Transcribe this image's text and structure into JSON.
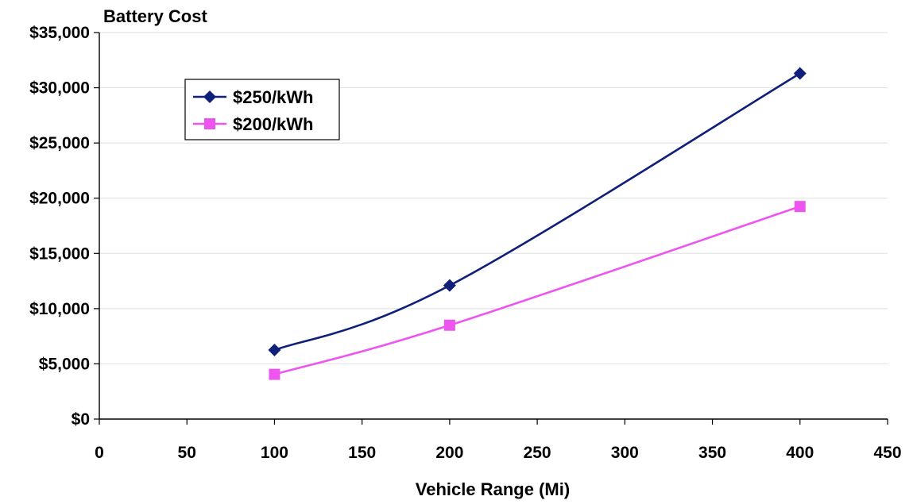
{
  "chart_data": {
    "type": "line",
    "title": "",
    "ylabel": "Battery Cost",
    "xlabel": "Vehicle Range (Mi)",
    "xlim": [
      0,
      450
    ],
    "ylim": [
      0,
      35000
    ],
    "x_ticks": [
      0,
      50,
      100,
      150,
      200,
      250,
      300,
      350,
      400,
      450
    ],
    "x_tick_labels": [
      "0",
      "50",
      "100",
      "150",
      "200",
      "250",
      "300",
      "350",
      "400",
      "450"
    ],
    "y_ticks": [
      0,
      5000,
      10000,
      15000,
      20000,
      25000,
      30000,
      35000
    ],
    "y_tick_labels": [
      "$0",
      "$5,000",
      "$10,000",
      "$15,000",
      "$20,000",
      "$25,000",
      "$30,000",
      "$35,000"
    ],
    "grid": "horizontal",
    "legend_position": "top-left",
    "series": [
      {
        "name": "$250/kWh",
        "color": "#0f1f7a",
        "marker": "diamond",
        "x": [
          100,
          200,
          400
        ],
        "values": [
          6250,
          12100,
          31300
        ]
      },
      {
        "name": "$200/kWh",
        "color": "#ee55ee",
        "marker": "square",
        "x": [
          100,
          200,
          400
        ],
        "values": [
          4050,
          8500,
          19250
        ]
      }
    ]
  }
}
